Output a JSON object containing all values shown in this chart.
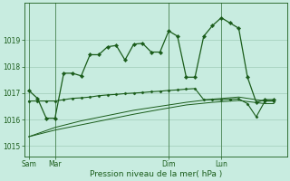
{
  "background_color": "#c8ece0",
  "grid_color": "#a0ccb8",
  "line_color": "#1a5c1a",
  "marker_color": "#1a5c1a",
  "text_color": "#1a5c1a",
  "xlabel": "Pression niveau de la mer( hPa )",
  "ylim": [
    1014.6,
    1020.4
  ],
  "yticks": [
    1015,
    1016,
    1017,
    1018,
    1019
  ],
  "day_labels": [
    "Sam",
    "Mar",
    "Dim",
    "Lun"
  ],
  "day_positions": [
    0,
    3,
    16,
    22
  ],
  "xlim": [
    -0.5,
    29.5
  ],
  "series1_x": [
    0,
    1,
    2,
    3,
    4,
    5,
    6,
    7,
    8,
    9,
    10,
    11,
    12,
    13,
    14,
    15,
    16,
    17,
    18,
    19,
    20,
    21,
    22,
    23,
    24,
    25,
    26,
    27,
    28
  ],
  "series1_y": [
    1017.1,
    1016.8,
    1016.05,
    1016.05,
    1017.75,
    1017.75,
    1017.65,
    1018.45,
    1018.45,
    1018.75,
    1018.8,
    1018.25,
    1018.85,
    1018.88,
    1018.55,
    1018.55,
    1019.35,
    1019.15,
    1017.6,
    1017.6,
    1019.15,
    1019.55,
    1019.85,
    1019.65,
    1019.45,
    1017.6,
    1016.65,
    1016.75,
    1016.75
  ],
  "series2_x": [
    0,
    1,
    2,
    3,
    4,
    5,
    6,
    7,
    8,
    9,
    10,
    11,
    12,
    13,
    14,
    15,
    16,
    17,
    18,
    19,
    20,
    21,
    22,
    23,
    24,
    25,
    26,
    27,
    28
  ],
  "series2_y": [
    1016.7,
    1016.7,
    1016.7,
    1016.7,
    1016.75,
    1016.8,
    1016.82,
    1016.85,
    1016.9,
    1016.93,
    1016.95,
    1016.98,
    1017.0,
    1017.02,
    1017.05,
    1017.07,
    1017.1,
    1017.12,
    1017.15,
    1017.17,
    1016.75,
    1016.75,
    1016.75,
    1016.77,
    1016.78,
    1016.6,
    1016.1,
    1016.7,
    1016.7
  ],
  "series3_x": [
    0,
    3,
    6,
    9,
    12,
    15,
    18,
    21,
    24,
    27,
    28
  ],
  "series3_y": [
    1015.35,
    1015.7,
    1015.95,
    1016.15,
    1016.35,
    1016.5,
    1016.65,
    1016.77,
    1016.85,
    1016.7,
    1016.7
  ],
  "series4_x": [
    0,
    3,
    6,
    9,
    12,
    15,
    18,
    21,
    24,
    27,
    28
  ],
  "series4_y": [
    1015.35,
    1015.6,
    1015.8,
    1016.0,
    1016.2,
    1016.38,
    1016.55,
    1016.65,
    1016.72,
    1016.6,
    1016.6
  ]
}
